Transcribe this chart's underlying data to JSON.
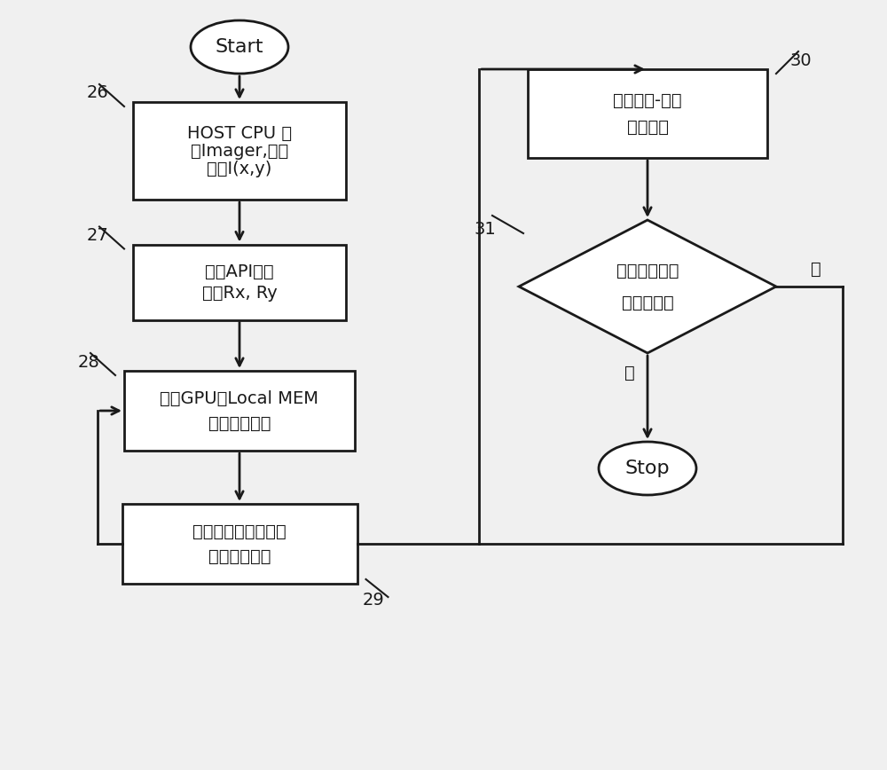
{
  "bg_color": "#f0f0f0",
  "line_color": "#1a1a1a",
  "box_color": "#ffffff",
  "text_color": "#1a1a1a",
  "fig_w": 10.0,
  "fig_h": 8.68,
  "dpi": 100,
  "start_text": "Start",
  "stop_text": "Stop",
  "box26_line1": "HOST CPU 启",
  "box26_line2": "动Imager,获取",
  "box26_line3": "图僾I(x,y)",
  "box27_line1": "经过API函数",
  "box27_line2": "读取Rx, Ry",
  "box28_line1": "根据GPU的Local MEM",
  "box28_line2": "进行图僾分割",
  "box29_line1": "将图僾或分割后的子",
  "box29_line2": "图僾读入内存",
  "box30_line1": "拉普拉斯-高斯",
  "box30_line2": "两维卷积",
  "diamond31_line1": "是否分割图僾",
  "diamond31_line2": "全部处理？",
  "label26": "26",
  "label27": "27",
  "label28": "28",
  "label29": "29",
  "label30": "30",
  "label31": "31",
  "yes_text": "是",
  "no_text": "否"
}
